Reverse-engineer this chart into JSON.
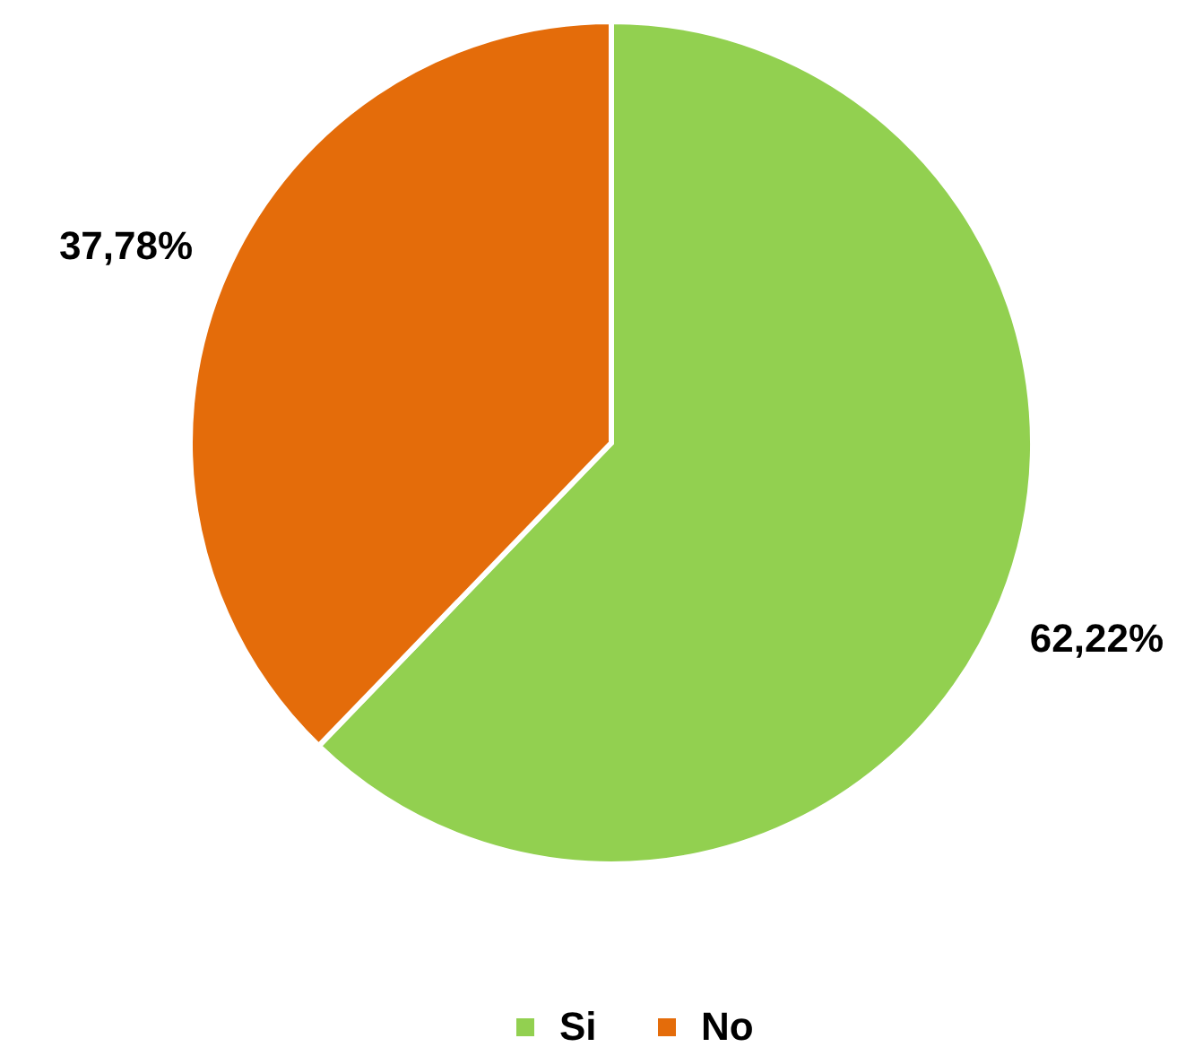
{
  "chart_data": {
    "type": "pie",
    "categories": [
      "Si",
      "No"
    ],
    "values": [
      62.22,
      37.78
    ],
    "colors": [
      "#92d050",
      "#e46c0a"
    ],
    "value_labels": [
      "62,22%",
      "37,78%"
    ],
    "legend": "bottom"
  }
}
